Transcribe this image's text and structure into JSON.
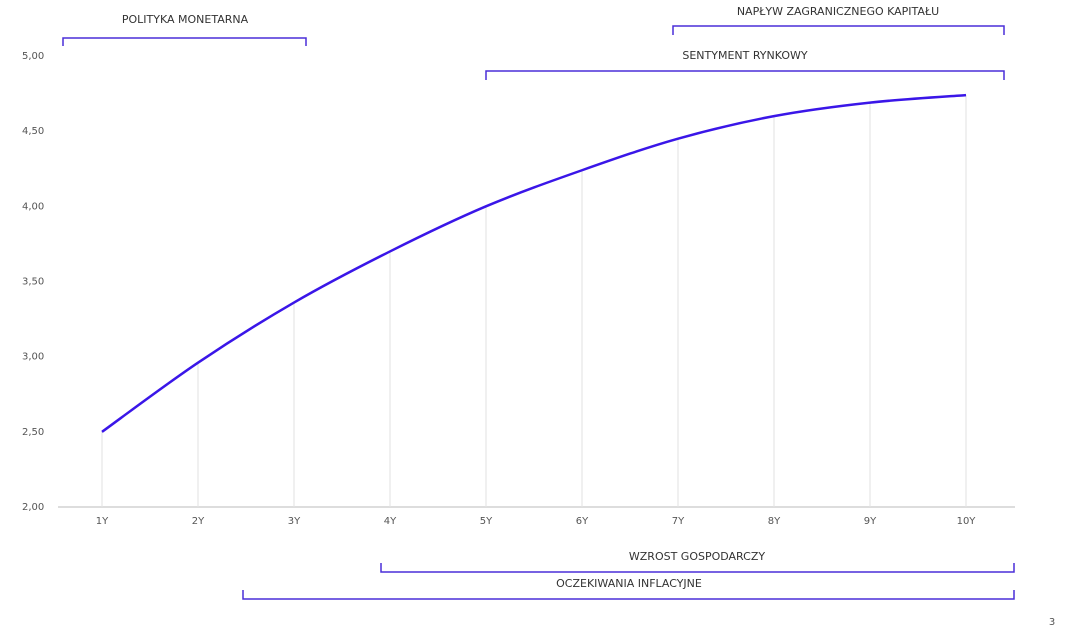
{
  "chart_data": {
    "type": "line",
    "categories": [
      "1Y",
      "2Y",
      "3Y",
      "4Y",
      "5Y",
      "6Y",
      "7Y",
      "8Y",
      "9Y",
      "10Y"
    ],
    "series": [
      {
        "color": "#3a16e8",
        "values": [
          2.5,
          2.96,
          3.36,
          3.7,
          4.0,
          4.24,
          4.45,
          4.6,
          4.69,
          4.74
        ]
      }
    ],
    "ylim": [
      2.0,
      5.0
    ],
    "yticks": [
      {
        "value": 2.0,
        "label": "2,00"
      },
      {
        "value": 2.5,
        "label": "2,50"
      },
      {
        "value": 3.0,
        "label": "3,00"
      },
      {
        "value": 3.5,
        "label": "3,50"
      },
      {
        "value": 4.0,
        "label": "4,00"
      },
      {
        "value": 4.5,
        "label": "4,50"
      },
      {
        "value": 5.0,
        "label": "5,00"
      }
    ],
    "drop_lines": true,
    "annotations": [
      "POLITYKA MONETARNA",
      "NAPŁYW ZAGRANICZNEGO KAPITAŁU",
      "SENTYMENT RYNKOWY",
      "WZROST GOSPODARCZY",
      "OCZEKIWANIA INFLACYJNE"
    ]
  },
  "page_number": "3"
}
